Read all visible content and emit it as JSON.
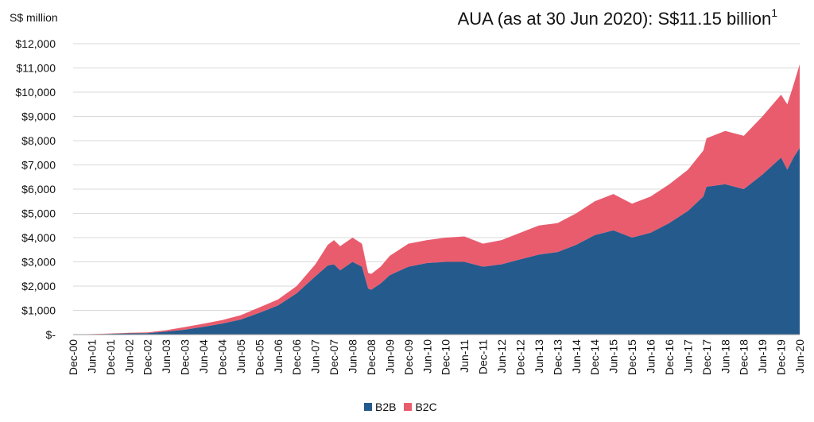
{
  "unit_label": "S$ million",
  "title_main": "AUA (as at 30 Jun 2020): S$11.15 billion",
  "title_footnote": "1",
  "colors": {
    "b2b": "#245A8C",
    "b2c": "#E95C6E",
    "grid": "#D9D9D9",
    "axis": "#999999"
  },
  "legend": [
    {
      "name": "B2B",
      "color": "#245A8C"
    },
    {
      "name": "B2C",
      "color": "#E95C6E"
    }
  ],
  "chart_data": {
    "type": "area",
    "stacked": true,
    "x_start": "Dec-00",
    "x_end": "Jun-20",
    "x_tick_labels": [
      "Dec-00",
      "Jun-01",
      "Dec-01",
      "Jun-02",
      "Dec-02",
      "Jun-03",
      "Dec-03",
      "Jun-04",
      "Dec-04",
      "Jun-05",
      "Dec-05",
      "Jun-06",
      "Dec-06",
      "Jun-07",
      "Dec-07",
      "Jun-08",
      "Dec-08",
      "Jun-09",
      "Dec-09",
      "Jun-10",
      "Dec-10",
      "Jun-11",
      "Dec-11",
      "Jun-12",
      "Dec-12",
      "Jun-13",
      "Dec-13",
      "Jun-14",
      "Dec-14",
      "Jun-15",
      "Dec-15",
      "Jun-16",
      "Dec-16",
      "Jun-17",
      "Dec-17",
      "Jun-18",
      "Dec-18",
      "Jun-19",
      "Dec-19",
      "Jun-20"
    ],
    "y_tick_labels": [
      "$-",
      "$1,000",
      "$2,000",
      "$3,000",
      "$4,000",
      "$5,000",
      "$6,000",
      "$7,000",
      "$8,000",
      "$9,000",
      "$10,000",
      "$11,000",
      "$12,000"
    ],
    "ylim": [
      0,
      12000
    ],
    "y_step": 1000,
    "ylabel": "S$ million",
    "grid": true,
    "legend_position": "bottom",
    "series": [
      {
        "name": "B2B",
        "points": [
          [
            "Dec-00",
            0
          ],
          [
            "Jun-01",
            10
          ],
          [
            "Dec-01",
            30
          ],
          [
            "Jun-02",
            50
          ],
          [
            "Dec-02",
            60
          ],
          [
            "Jun-03",
            120
          ],
          [
            "Dec-03",
            200
          ],
          [
            "Jun-04",
            320
          ],
          [
            "Dec-04",
            450
          ],
          [
            "Jun-05",
            620
          ],
          [
            "Dec-05",
            900
          ],
          [
            "Jun-06",
            1200
          ],
          [
            "Dec-06",
            1700
          ],
          [
            "Jun-07",
            2400
          ],
          [
            "Oct-07",
            2850
          ],
          [
            "Dec-07",
            2900
          ],
          [
            "Feb-08",
            2650
          ],
          [
            "Jun-08",
            3000
          ],
          [
            "Sep-08",
            2800
          ],
          [
            "Nov-08",
            1900
          ],
          [
            "Dec-08",
            1850
          ],
          [
            "Mar-09",
            2100
          ],
          [
            "Jun-09",
            2450
          ],
          [
            "Dec-09",
            2800
          ],
          [
            "Jun-10",
            2950
          ],
          [
            "Dec-10",
            3000
          ],
          [
            "Jun-11",
            3000
          ],
          [
            "Dec-11",
            2800
          ],
          [
            "Jun-12",
            2900
          ],
          [
            "Dec-12",
            3100
          ],
          [
            "Jun-13",
            3300
          ],
          [
            "Dec-13",
            3400
          ],
          [
            "Jun-14",
            3700
          ],
          [
            "Dec-14",
            4100
          ],
          [
            "Jun-15",
            4300
          ],
          [
            "Dec-15",
            4000
          ],
          [
            "Jun-16",
            4200
          ],
          [
            "Dec-16",
            4600
          ],
          [
            "Jun-17",
            5100
          ],
          [
            "Nov-17",
            5700
          ],
          [
            "Dec-17",
            6100
          ],
          [
            "Jun-18",
            6200
          ],
          [
            "Dec-18",
            6000
          ],
          [
            "Jun-19",
            6600
          ],
          [
            "Dec-19",
            7300
          ],
          [
            "Feb-20",
            6800
          ],
          [
            "Apr-20",
            7300
          ],
          [
            "Jun-20",
            7700
          ]
        ]
      },
      {
        "name": "B2C",
        "points": [
          [
            "Dec-00",
            0
          ],
          [
            "Jun-01",
            10
          ],
          [
            "Dec-01",
            15
          ],
          [
            "Jun-02",
            25
          ],
          [
            "Dec-02",
            30
          ],
          [
            "Jun-03",
            60
          ],
          [
            "Dec-03",
            110
          ],
          [
            "Jun-04",
            130
          ],
          [
            "Dec-04",
            150
          ],
          [
            "Jun-05",
            180
          ],
          [
            "Dec-05",
            220
          ],
          [
            "Jun-06",
            250
          ],
          [
            "Dec-06",
            300
          ],
          [
            "Jun-07",
            500
          ],
          [
            "Oct-07",
            850
          ],
          [
            "Dec-07",
            1000
          ],
          [
            "Feb-08",
            1000
          ],
          [
            "Jun-08",
            1000
          ],
          [
            "Sep-08",
            950
          ],
          [
            "Nov-08",
            650
          ],
          [
            "Dec-08",
            650
          ],
          [
            "Mar-09",
            700
          ],
          [
            "Jun-09",
            800
          ],
          [
            "Dec-09",
            950
          ],
          [
            "Jun-10",
            950
          ],
          [
            "Dec-10",
            1000
          ],
          [
            "Jun-11",
            1050
          ],
          [
            "Dec-11",
            950
          ],
          [
            "Jun-12",
            1000
          ],
          [
            "Dec-12",
            1100
          ],
          [
            "Jun-13",
            1200
          ],
          [
            "Dec-13",
            1200
          ],
          [
            "Jun-14",
            1300
          ],
          [
            "Dec-14",
            1400
          ],
          [
            "Jun-15",
            1500
          ],
          [
            "Dec-15",
            1400
          ],
          [
            "Jun-16",
            1500
          ],
          [
            "Dec-16",
            1600
          ],
          [
            "Jun-17",
            1700
          ],
          [
            "Nov-17",
            1900
          ],
          [
            "Dec-17",
            2000
          ],
          [
            "Jun-18",
            2200
          ],
          [
            "Dec-18",
            2200
          ],
          [
            "Jun-19",
            2400
          ],
          [
            "Dec-19",
            2600
          ],
          [
            "Feb-20",
            2700
          ],
          [
            "Apr-20",
            3000
          ],
          [
            "Jun-20",
            3450
          ]
        ]
      }
    ]
  }
}
